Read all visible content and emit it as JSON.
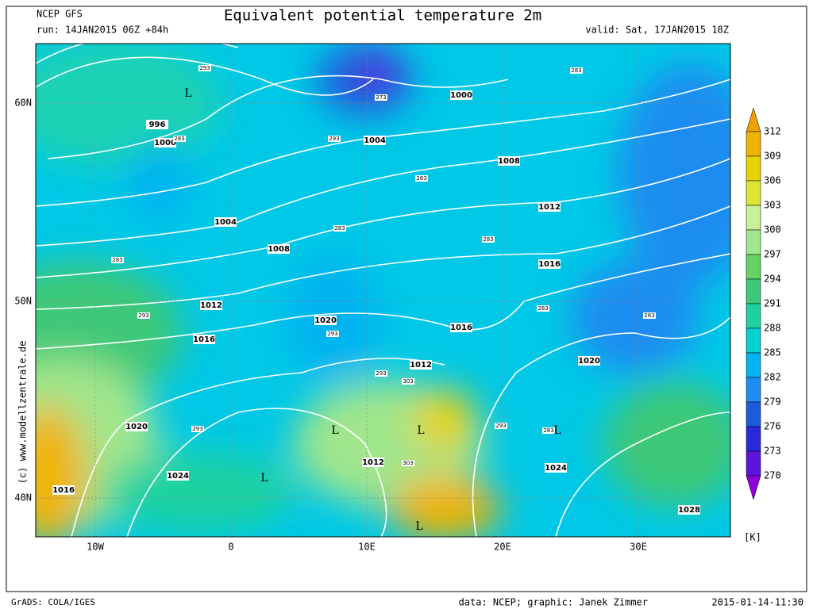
{
  "header": {
    "model": "NCEP GFS",
    "run": "run: 14JAN2015 06Z +84h",
    "title": "Equivalent potential temperature 2m",
    "valid": "valid: Sat, 17JAN2015 18Z"
  },
  "axes": {
    "lat_labels": [
      "60N",
      "50N",
      "40N"
    ],
    "lon_labels": [
      "10W",
      "0",
      "10E",
      "20E",
      "30E"
    ]
  },
  "colorbar": {
    "unit": "[K]",
    "levels": [
      312,
      309,
      306,
      303,
      300,
      297,
      294,
      291,
      288,
      285,
      282,
      279,
      276,
      273,
      270
    ],
    "colors": [
      "#f0a000",
      "#f0b400",
      "#e8d200",
      "#dce632",
      "#c8f096",
      "#a0e68c",
      "#64d264",
      "#3cc878",
      "#1ed2a0",
      "#00d2d2",
      "#00b4f0",
      "#1e8cf0",
      "#1e5adc",
      "#2828dc",
      "#5a14dc",
      "#8c00dc"
    ]
  },
  "isobar_labels": [
    996,
    1000,
    1000,
    1004,
    1004,
    1008,
    1008,
    1012,
    1012,
    1012,
    1012,
    1016,
    1016,
    1016,
    1016,
    1020,
    1020,
    1020,
    1024,
    1024,
    1028
  ],
  "theta_labels": [
    293,
    283,
    273,
    293,
    283,
    283,
    283,
    283,
    293,
    293,
    283,
    283,
    293,
    303,
    293,
    293,
    283,
    303,
    283
  ],
  "low_labels": [
    "L",
    "L",
    "L",
    "L",
    "L",
    "L"
  ],
  "watermark": "(c) www.modellzentrale.de",
  "footer": {
    "left": "GrADS: COLA/IGES",
    "credit": "data: NCEP; graphic: Janek Zimmer",
    "timestamp": "2015-01-14-11:30"
  }
}
